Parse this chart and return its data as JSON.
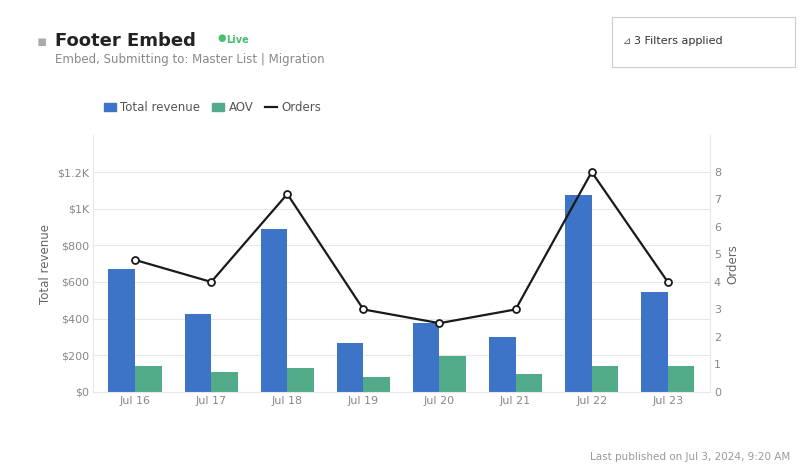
{
  "categories": [
    "Jul 16",
    "Jul 17",
    "Jul 18",
    "Jul 19",
    "Jul 20",
    "Jul 21",
    "Jul 22",
    "Jul 23"
  ],
  "total_revenue": [
    670,
    425,
    890,
    265,
    375,
    300,
    1075,
    545
  ],
  "aov": [
    140,
    110,
    130,
    80,
    195,
    100,
    140,
    140
  ],
  "orders": [
    4.8,
    4.0,
    7.2,
    3.0,
    2.5,
    3.0,
    8.0,
    4.0
  ],
  "bar_width": 0.35,
  "bar_color_revenue": "#3d74c7",
  "bar_color_aov": "#52ab88",
  "line_color": "#1a1a1a",
  "line_marker": "o",
  "marker_facecolor": "white",
  "marker_edgecolor": "#1a1a1a",
  "marker_size": 5,
  "ylabel_left": "Total revenue",
  "ylabel_right": "Orders",
  "ylim_left": [
    0,
    1400
  ],
  "ylim_right": [
    0,
    9.333
  ],
  "yticks_left": [
    0,
    200,
    400,
    600,
    800,
    1000,
    1200
  ],
  "ytick_labels_left": [
    "$0",
    "$200",
    "$400",
    "$600",
    "$800",
    "$1K",
    "$1.2K"
  ],
  "yticks_right": [
    0,
    1,
    2,
    3,
    4,
    5,
    6,
    7,
    8
  ],
  "title_text": "Footer Embed",
  "subtitle_text": "Embed, Submitting to: Master List | Migration",
  "live_text": "Live",
  "filters_text": "3 Filters applied",
  "footer_text": "Last published on Jul 3, 2024, 9:20 AM",
  "legend_revenue": "Total revenue",
  "legend_aov": "AOV",
  "legend_orders": "Orders",
  "bg_color": "#ffffff",
  "grid_color": "#e8e8e8",
  "axis_label_color": "#666666",
  "tick_label_color": "#888888",
  "title_fontsize": 13,
  "subtitle_fontsize": 8.5,
  "legend_fontsize": 8.5,
  "axis_label_fontsize": 8.5,
  "tick_fontsize": 8
}
